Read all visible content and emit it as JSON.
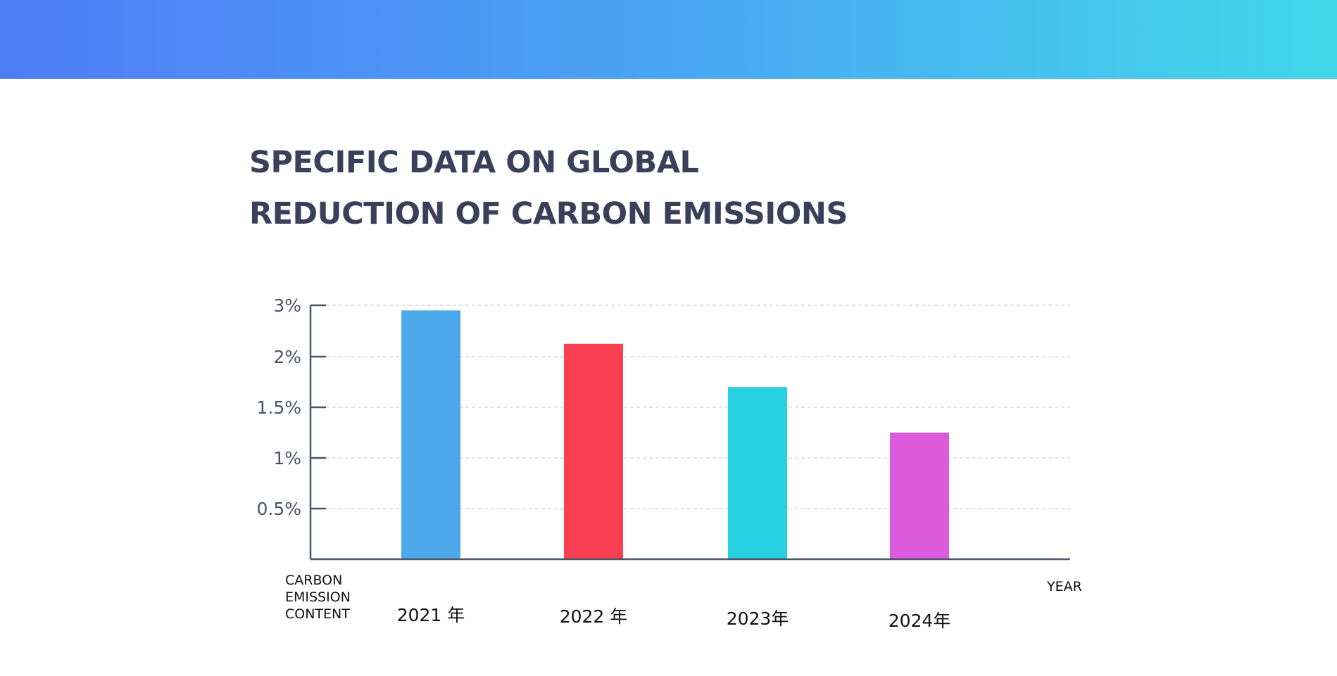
{
  "colors": {
    "banner_start": "#4f7cf7",
    "banner_end": "#40d8e8",
    "title": "#39405a",
    "axis": "#4a5568",
    "grid": "#d9d9d9"
  },
  "title_lines": [
    "SPECIFIC DATA ON GLOBAL",
    "REDUCTION OF CARBON EMISSIONS"
  ],
  "chart_data": {
    "type": "bar",
    "title": "SPECIFIC DATA ON GLOBAL REDUCTION OF CARBON EMISSIONS",
    "categories": [
      "2021 年",
      "2022 年",
      "2023年",
      "2024年"
    ],
    "values": [
      2.9,
      2.25,
      1.7,
      1.25
    ],
    "bar_colors": [
      "#4ba8ea",
      "#f84052",
      "#26d0e0",
      "#dc5ade"
    ],
    "ylabel": [
      "CARBON",
      "EMISSION",
      "CONTENT"
    ],
    "xlabel": "YEAR",
    "yticks": [
      "0.5%",
      "1%",
      "1.5%",
      "2%",
      "3%"
    ],
    "ylim": [
      0,
      3
    ],
    "grid": true,
    "grid_style": "dashed horizontal"
  }
}
